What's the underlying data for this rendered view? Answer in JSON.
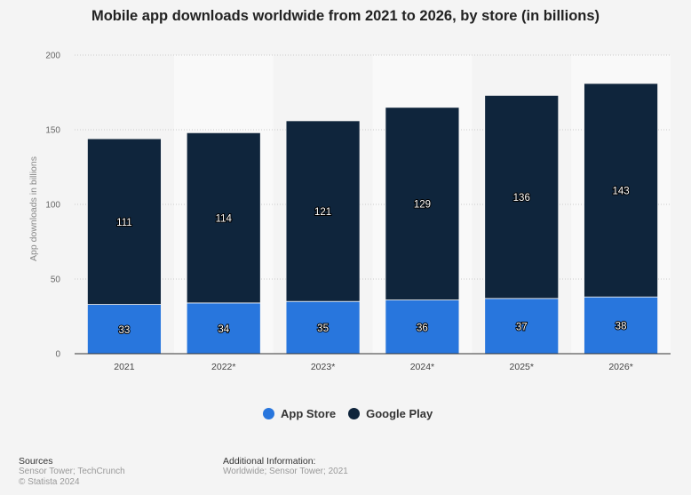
{
  "chart_data": {
    "type": "bar",
    "stacked": true,
    "title": "Mobile app downloads worldwide from 2021 to 2026, by store (in billions)",
    "xlabel": "",
    "ylabel": "App downloads in billions",
    "ylim": [
      0,
      200
    ],
    "yticks": [
      "0",
      "50",
      "100",
      "150",
      "200"
    ],
    "grid": true,
    "legend_position": "bottom",
    "categories": [
      "2021",
      "2022*",
      "2023*",
      "2024*",
      "2025*",
      "2026*"
    ],
    "series": [
      {
        "name": "App Store",
        "color": "#2876dd",
        "values": [
          33,
          34,
          35,
          36,
          37,
          38
        ]
      },
      {
        "name": "Google Play",
        "color": "#0f253c",
        "values": [
          111,
          114,
          121,
          129,
          136,
          143
        ]
      }
    ]
  },
  "footer": {
    "sources_label": "Sources",
    "sources": "Sensor Tower; TechCrunch",
    "copyright": "© Statista 2024",
    "additional_label": "Additional Information:",
    "additional": "Worldwide; Sensor Tower; 2021"
  }
}
